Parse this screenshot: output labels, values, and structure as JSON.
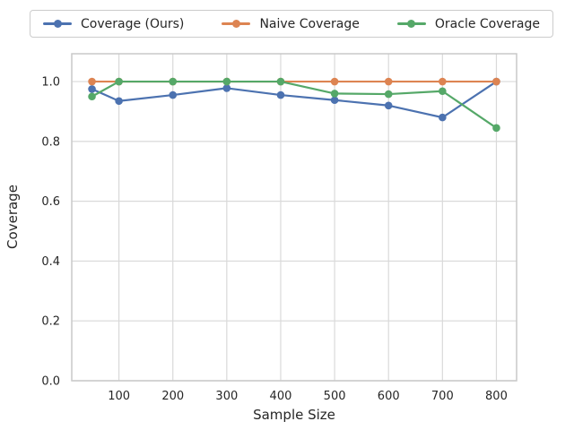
{
  "figure": {
    "background": "#ffffff",
    "grid_color": "#d9d9d9",
    "spine_color": "#c9c9c9",
    "text_color": "#262626"
  },
  "legend": {
    "position": "top",
    "items": [
      {
        "label": "Coverage (Ours)",
        "color": "#4C72B0"
      },
      {
        "label": "Naive Coverage",
        "color": "#DD8452"
      },
      {
        "label": "Oracle Coverage",
        "color": "#55A868"
      }
    ]
  },
  "chart_data": {
    "type": "line",
    "title": "",
    "xlabel": "Sample Size",
    "ylabel": "Coverage",
    "x": [
      50,
      100,
      200,
      300,
      400,
      500,
      600,
      700,
      800
    ],
    "series": [
      {
        "name": "Coverage (Ours)",
        "color": "#4C72B0",
        "values": [
          0.975,
          0.935,
          0.955,
          0.978,
          0.955,
          0.938,
          0.92,
          0.88,
          1.0
        ]
      },
      {
        "name": "Naive Coverage",
        "color": "#DD8452",
        "values": [
          1.0,
          1.0,
          1.0,
          1.0,
          1.0,
          1.0,
          1.0,
          1.0,
          1.0
        ]
      },
      {
        "name": "Oracle Coverage",
        "color": "#55A868",
        "values": [
          0.95,
          1.0,
          1.0,
          1.0,
          1.0,
          0.96,
          0.958,
          0.968,
          0.845
        ]
      }
    ],
    "xticks": [
      100,
      200,
      300,
      400,
      500,
      600,
      700,
      800
    ],
    "xtick_labels": [
      "100",
      "200",
      "300",
      "400",
      "500",
      "600",
      "700",
      "800"
    ],
    "yticks": [
      0.0,
      0.2,
      0.4,
      0.6,
      0.8,
      1.0
    ],
    "ytick_labels": [
      "0.0",
      "0.2",
      "0.4",
      "0.6",
      "0.8",
      "1.0"
    ],
    "xlim": [
      12.5,
      837.5
    ],
    "ylim": [
      0,
      1.093
    ],
    "grid": true,
    "legend_position": "top outside"
  }
}
